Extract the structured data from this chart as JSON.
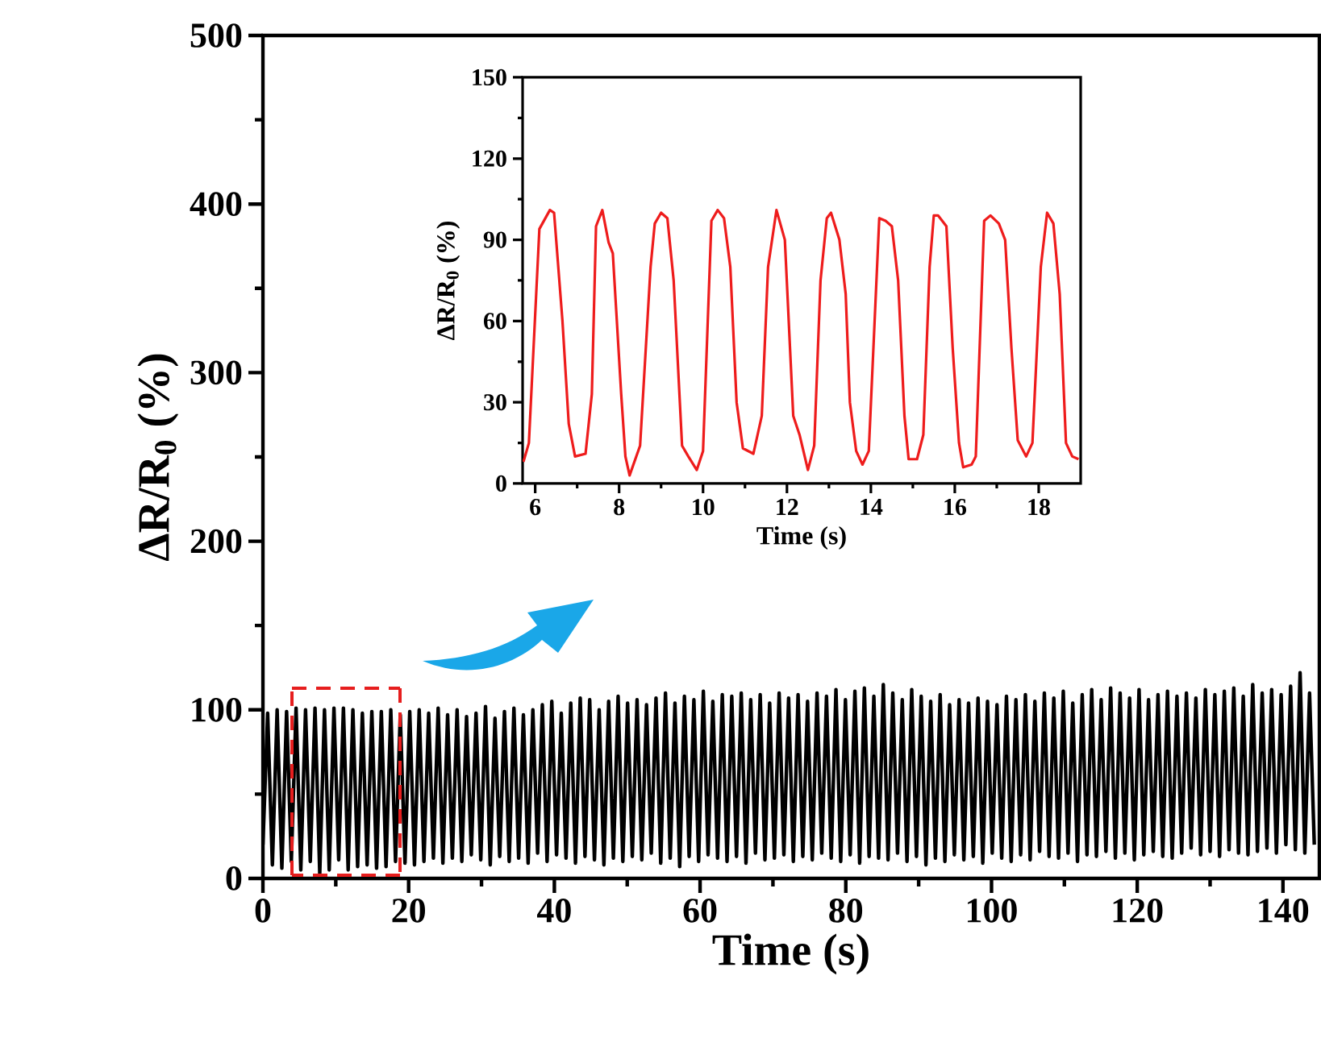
{
  "chart_data": [
    {
      "type": "line",
      "xlabel": "Time (s)",
      "ylabel": "ΔR/R$_{0}$ (%)",
      "color": "#000000",
      "xlim": [
        0,
        145
      ],
      "ylim": [
        0,
        500
      ],
      "xticks": [
        0,
        20,
        40,
        60,
        80,
        100,
        120,
        140
      ],
      "yticks": [
        0,
        100,
        200,
        300,
        400,
        500
      ],
      "x": [
        0,
        0.65,
        1.3,
        1.95,
        2.6,
        3.25,
        3.9,
        4.55,
        5.2,
        5.85,
        6.5,
        7.15,
        7.8,
        8.45,
        9.1,
        9.75,
        10.4,
        11.05,
        11.7,
        12.35,
        13,
        13.65,
        14.3,
        14.95,
        15.6,
        16.25,
        16.9,
        17.55,
        18.2,
        18.85,
        19.5,
        20.15,
        20.8,
        21.45,
        22.1,
        22.75,
        23.4,
        24.05,
        24.7,
        25.35,
        26,
        26.65,
        27.3,
        27.95,
        28.6,
        29.25,
        29.9,
        30.55,
        31.2,
        31.85,
        32.5,
        33.15,
        33.8,
        34.45,
        35.1,
        35.75,
        36.4,
        37.05,
        37.7,
        38.35,
        39,
        39.65,
        40.3,
        40.95,
        41.6,
        42.25,
        42.9,
        43.55,
        44.2,
        44.85,
        45.5,
        46.15,
        46.8,
        47.45,
        48.1,
        48.75,
        49.4,
        50.05,
        50.7,
        51.35,
        52,
        52.65,
        53.3,
        53.95,
        54.6,
        55.25,
        55.9,
        56.55,
        57.2,
        57.85,
        58.5,
        59.15,
        59.8,
        60.45,
        61.1,
        61.75,
        62.4,
        63.05,
        63.7,
        64.35,
        65,
        65.65,
        66.3,
        66.95,
        67.6,
        68.25,
        68.9,
        69.55,
        70.2,
        70.85,
        71.5,
        72.15,
        72.8,
        73.45,
        74.1,
        74.75,
        75.4,
        76.05,
        76.7,
        77.35,
        78,
        78.65,
        79.3,
        79.95,
        80.6,
        81.25,
        81.9,
        82.55,
        83.2,
        83.85,
        84.5,
        85.15,
        85.8,
        86.45,
        87.1,
        87.75,
        88.4,
        89.05,
        89.7,
        90.35,
        91,
        91.65,
        92.3,
        92.95,
        93.6,
        94.25,
        94.9,
        95.55,
        96.2,
        96.85,
        97.5,
        98.15,
        98.8,
        99.45,
        100.1,
        100.75,
        101.4,
        102.05,
        102.7,
        103.35,
        104,
        104.65,
        105.3,
        105.95,
        106.6,
        107.25,
        107.9,
        108.55,
        109.2,
        109.85,
        110.5,
        111.15,
        111.8,
        112.45,
        113.1,
        113.75,
        114.4,
        115.05,
        115.7,
        116.35,
        117,
        117.65,
        118.3,
        118.95,
        119.6,
        120.25,
        120.9,
        121.55,
        122.2,
        122.85,
        123.5,
        124.15,
        124.8,
        125.45,
        126.1,
        126.75,
        127.4,
        128.05,
        128.7,
        129.35,
        130,
        130.65,
        131.3,
        131.95,
        132.6,
        133.25,
        133.9,
        134.55,
        135.2,
        135.85,
        136.5,
        137.15,
        137.8,
        138.45,
        139.1,
        139.75,
        140.4,
        141.05,
        141.7,
        142.35,
        143,
        143.65,
        144.3
      ],
      "values": [
        20,
        98,
        8,
        100,
        6,
        99,
        10,
        101,
        5,
        100,
        10,
        101,
        3,
        100,
        5,
        101,
        11,
        101,
        5,
        100,
        7,
        98,
        8,
        99,
        6,
        99,
        7,
        100,
        10,
        97,
        9,
        99,
        8,
        100,
        10,
        98,
        12,
        101,
        9,
        97,
        12,
        100,
        10,
        96,
        14,
        98,
        11,
        102,
        8,
        95,
        13,
        99,
        10,
        101,
        12,
        97,
        9,
        100,
        15,
        103,
        10,
        105,
        14,
        98,
        12,
        104,
        9,
        107,
        13,
        106,
        11,
        100,
        8,
        105,
        12,
        108,
        10,
        104,
        13,
        106,
        11,
        103,
        15,
        107,
        9,
        110,
        12,
        104,
        7,
        108,
        13,
        106,
        10,
        111,
        14,
        105,
        12,
        109,
        10,
        108,
        13,
        110,
        9,
        106,
        15,
        109,
        11,
        104,
        12,
        110,
        14,
        107,
        10,
        109,
        13,
        105,
        11,
        110,
        15,
        108,
        12,
        112,
        10,
        106,
        14,
        111,
        9,
        113,
        13,
        108,
        12,
        115,
        11,
        110,
        15,
        106,
        10,
        112,
        13,
        108,
        8,
        105,
        12,
        109,
        10,
        103,
        14,
        106,
        11,
        104,
        13,
        107,
        9,
        105,
        15,
        103,
        12,
        108,
        10,
        106,
        14,
        109,
        11,
        105,
        16,
        110,
        13,
        107,
        12,
        111,
        15,
        104,
        10,
        109,
        14,
        112,
        13,
        106,
        16,
        113,
        12,
        110,
        15,
        107,
        11,
        112,
        14,
        106,
        16,
        109,
        13,
        111,
        12,
        108,
        15,
        110,
        18,
        107,
        14,
        112,
        16,
        109,
        13,
        111,
        17,
        113,
        15,
        108,
        14,
        115,
        16,
        110,
        18,
        112,
        15,
        109,
        20,
        114,
        17,
        122,
        15,
        110,
        20
      ]
    },
    {
      "type": "line",
      "xlabel": "Time (s)",
      "ylabel": "ΔR/R$_{0}$ (%)",
      "color": "#ee1c1c",
      "xlim": [
        5.7,
        19
      ],
      "ylim": [
        0,
        150
      ],
      "xticks": [
        6,
        8,
        10,
        12,
        14,
        16,
        18
      ],
      "yticks": [
        0,
        30,
        60,
        90,
        120,
        150
      ],
      "x": [
        5.72,
        5.85,
        6.1,
        6.35,
        6.45,
        6.65,
        6.8,
        6.95,
        7.2,
        7.35,
        7.45,
        7.6,
        7.75,
        7.85,
        8.05,
        8.15,
        8.25,
        8.5,
        8.75,
        8.85,
        9.0,
        9.15,
        9.3,
        9.5,
        9.65,
        9.85,
        10.0,
        10.2,
        10.35,
        10.5,
        10.65,
        10.8,
        10.95,
        11.2,
        11.4,
        11.55,
        11.75,
        11.95,
        12.15,
        12.3,
        12.5,
        12.65,
        12.8,
        12.95,
        13.05,
        13.25,
        13.4,
        13.5,
        13.65,
        13.8,
        13.95,
        14.2,
        14.35,
        14.5,
        14.65,
        14.8,
        14.9,
        15.1,
        15.25,
        15.4,
        15.5,
        15.6,
        15.8,
        15.95,
        16.1,
        16.2,
        16.4,
        16.5,
        16.7,
        16.85,
        17.05,
        17.2,
        17.35,
        17.5,
        17.7,
        17.85,
        18.05,
        18.2,
        18.35,
        18.5,
        18.65,
        18.8,
        18.95
      ],
      "values": [
        8,
        15,
        94,
        101,
        100,
        60,
        22,
        10,
        11,
        33,
        95,
        101,
        89,
        85,
        33,
        10,
        3,
        14,
        80,
        96,
        100,
        98,
        75,
        14,
        10,
        5,
        12,
        97,
        101,
        98,
        80,
        30,
        13,
        11,
        25,
        80,
        101,
        90,
        25,
        18,
        5,
        14,
        75,
        98,
        100,
        90,
        70,
        30,
        12,
        7,
        12,
        98,
        97,
        95,
        75,
        25,
        9,
        9,
        18,
        80,
        99,
        99,
        95,
        50,
        15,
        6,
        7,
        10,
        97,
        99,
        96,
        90,
        50,
        16,
        10,
        15,
        80,
        100,
        96,
        70,
        15,
        10,
        9
      ]
    }
  ]
}
